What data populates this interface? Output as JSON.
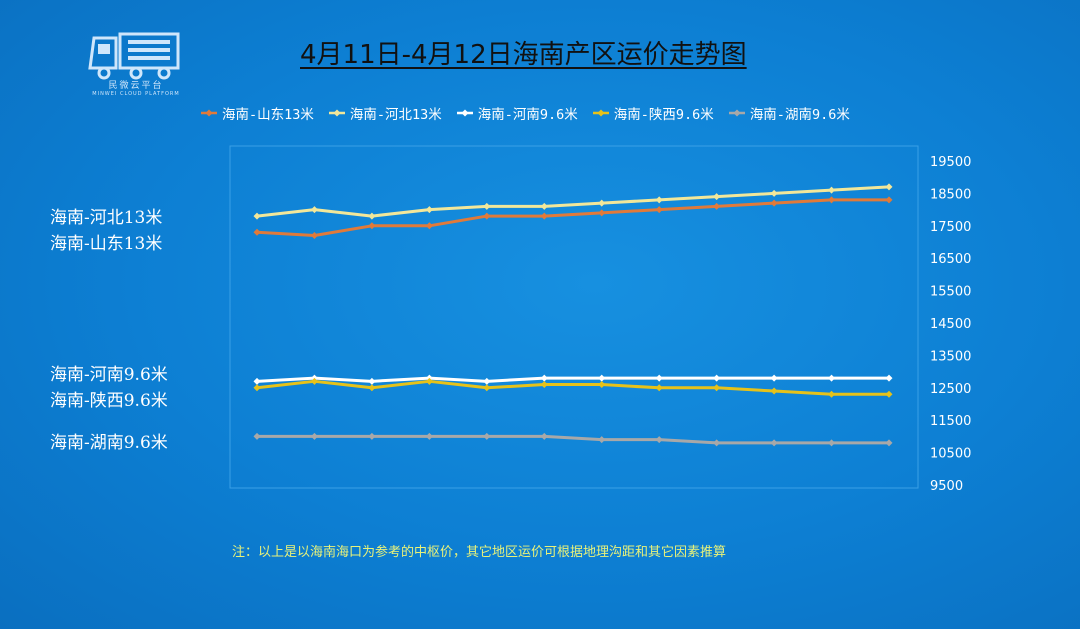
{
  "logo": {
    "icon": "truck-icon",
    "text": "民微云平台",
    "subtext": "MINWEI CLOUD PLATFORM"
  },
  "title": "4月11日-4月12日海南产区运价走势图",
  "side_labels": [
    "海南-河北13米",
    "海南-山东13米",
    "海南-河南9.6米",
    "海南-陕西9.6米",
    "海南-湖南9.6米"
  ],
  "note": "注：以上是以海南海口为参考的中枢价，其它地区运价可根据地理沟距和其它因素推算",
  "chart_data": {
    "type": "line",
    "title": "4月11日-4月12日海南产区运价走势图",
    "xlabel": "",
    "ylabel": "",
    "ylim": [
      9500,
      19500
    ],
    "yticks": [
      9500,
      10500,
      11500,
      12500,
      13500,
      14500,
      15500,
      16500,
      17500,
      18500,
      19500
    ],
    "y_axis_side": "right",
    "grid": false,
    "legend_position": "top",
    "x": [
      1,
      2,
      3,
      4,
      5,
      6,
      7,
      8,
      9,
      10,
      11,
      12
    ],
    "series": [
      {
        "name": "海南-山东13米",
        "color": "#e07a3a",
        "values": [
          17300,
          17200,
          17500,
          17500,
          17800,
          17800,
          17900,
          18000,
          18100,
          18200,
          18300,
          18300
        ]
      },
      {
        "name": "海南-河北13米",
        "color": "#f2e79a",
        "values": [
          17800,
          18000,
          17800,
          18000,
          18100,
          18100,
          18200,
          18300,
          18400,
          18500,
          18600,
          18700
        ]
      },
      {
        "name": "海南-河南9.6米",
        "color": "#ffffff",
        "values": [
          12700,
          12800,
          12700,
          12800,
          12700,
          12800,
          12800,
          12800,
          12800,
          12800,
          12800,
          12800
        ]
      },
      {
        "name": "海南-陕西9.6米",
        "color": "#e6c21a",
        "values": [
          12500,
          12700,
          12500,
          12700,
          12500,
          12600,
          12600,
          12500,
          12500,
          12400,
          12300,
          12300
        ]
      },
      {
        "name": "海南-湖南9.6米",
        "color": "#a8a8a8",
        "values": [
          11000,
          11000,
          11000,
          11000,
          11000,
          11000,
          10900,
          10900,
          10800,
          10800,
          10800,
          10800
        ]
      }
    ]
  }
}
